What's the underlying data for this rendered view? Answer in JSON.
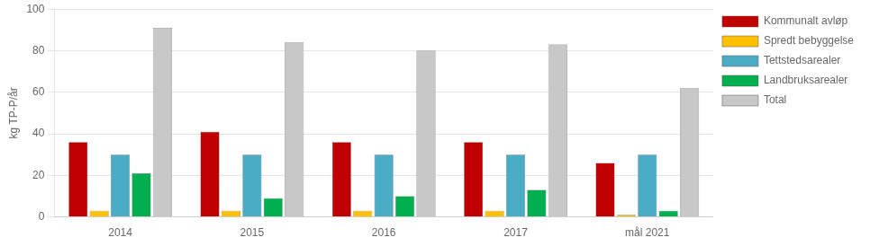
{
  "chart_data": {
    "type": "bar",
    "categories": [
      "2014",
      "2015",
      "2016",
      "2017",
      "mål 2021"
    ],
    "series": [
      {
        "name": "Kommunalt avløp",
        "color": "#C00000",
        "values": [
          36,
          41,
          36,
          36,
          26
        ]
      },
      {
        "name": "Spredt bebyggelse",
        "color": "#FFC000",
        "values": [
          3,
          3,
          3,
          3,
          1
        ]
      },
      {
        "name": "Tettstedsarealer",
        "color": "#4BACC6",
        "values": [
          30,
          30,
          30,
          30,
          30
        ]
      },
      {
        "name": "Landbruksarealer",
        "color": "#00B050",
        "values": [
          21,
          9,
          10,
          13,
          3
        ]
      },
      {
        "name": "Total",
        "color": "#C8C8C8",
        "values": [
          91,
          84,
          80,
          83,
          62
        ]
      }
    ],
    "ylabel": "kg TP-P/år",
    "ylim": [
      0,
      100
    ],
    "yticks": [
      0,
      20,
      40,
      60,
      80,
      100
    ],
    "grid": true,
    "legend": "right"
  }
}
